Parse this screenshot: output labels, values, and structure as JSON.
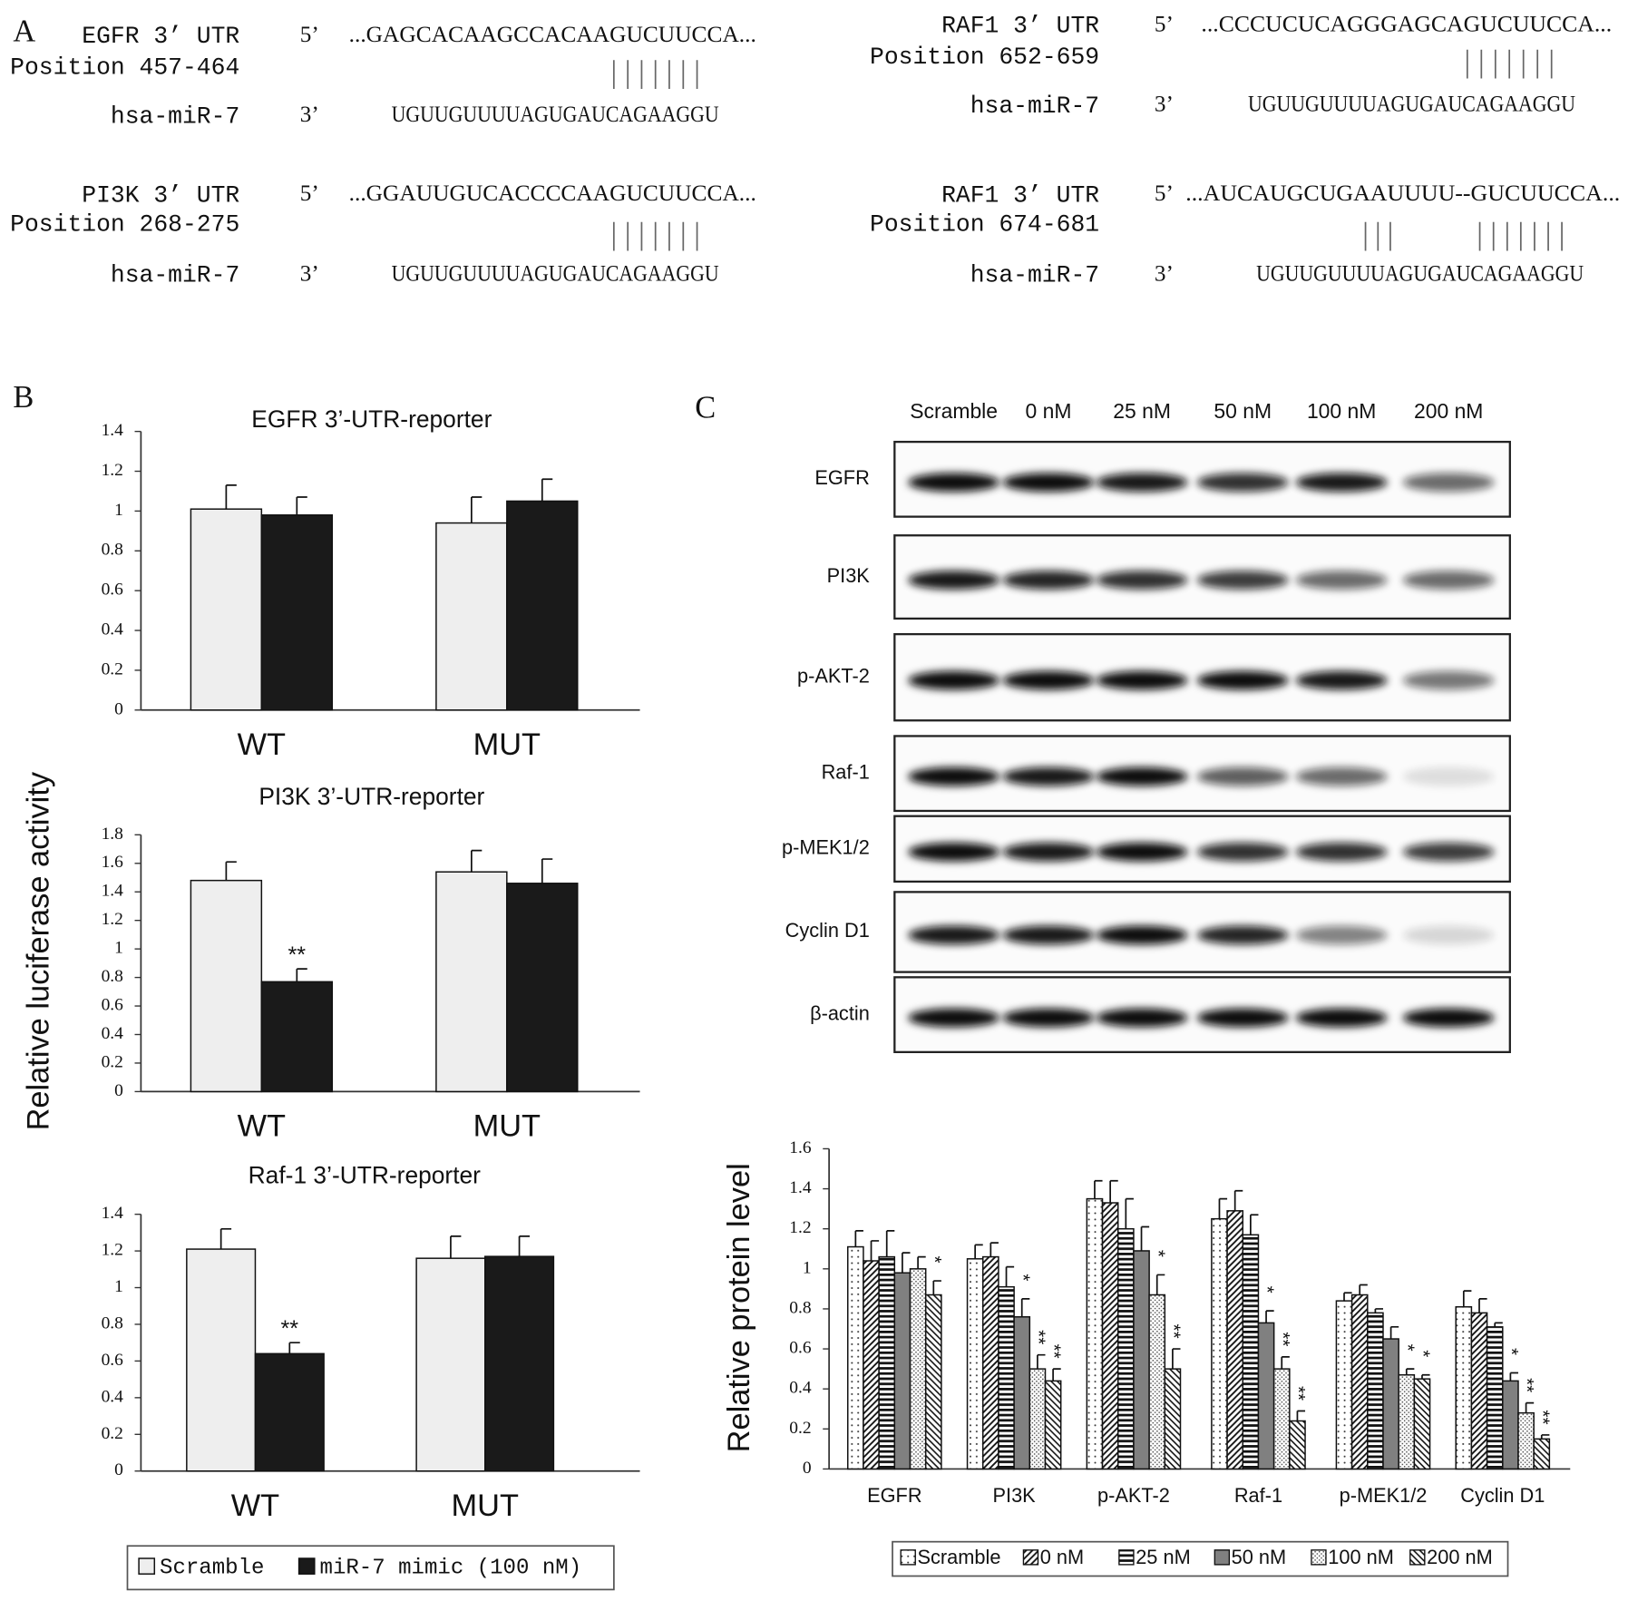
{
  "panel_labels": [
    "A",
    "B",
    "C"
  ],
  "panel_a": {
    "alignments": [
      {
        "gene": "EGFR 3’ UTR",
        "position": "Position 457-464",
        "five": "5’",
        "utr_seq": "...GAGCACAAGCCACAAGUCUUCCA...",
        "pairing": [
          "|||||||"
        ],
        "mirna_label": "hsa-miR-7",
        "three": "3’",
        "mirna_seq": "UGUUGUUUUAGUGAUCAGAAGGU"
      },
      {
        "gene": "PI3K 3’ UTR",
        "position": "Position 268-275",
        "five": "5’",
        "utr_seq": "...GGAUUGUCACCCCAAGUCUUCCA...",
        "pairing": [
          "|||||||"
        ],
        "mirna_label": "hsa-miR-7",
        "three": "3’",
        "mirna_seq": "UGUUGUUUUAGUGAUCAGAAGGU"
      },
      {
        "gene": "RAF1 3’ UTR",
        "position": "Position 652-659",
        "five": "5’",
        "utr_seq": "...CCCUCUCAGGGAGCAGUCUUCCA...",
        "pairing": [
          "|||||||"
        ],
        "mirna_label": "hsa-miR-7",
        "three": "3’",
        "mirna_seq": "UGUUGUUUUAGUGAUCAGAAGGU"
      },
      {
        "gene": "RAF1 3’ UTR",
        "position": "Position 674-681",
        "five": "5’",
        "utr_seq": "...AUCAUGCUGAAUUUU--GUCUUCCA...",
        "pairing": [
          "|||",
          "|||||||"
        ],
        "mirna_label": "hsa-miR-7",
        "three": "3’",
        "mirna_seq": "UGUUGUUUUAGUGAUCAGAAGGU"
      }
    ]
  },
  "panel_c_blot": {
    "columns": [
      "Scramble",
      "0 nM",
      "25 nM",
      "50 nM",
      "100 nM",
      "200 nM"
    ],
    "rows": [
      "EGFR",
      "PI3K",
      "p-AKT-2",
      "Raf-1",
      "p-MEK1/2",
      "Cyclin D1",
      "β-actin"
    ]
  },
  "chart_data": [
    {
      "type": "bar",
      "title": "EGFR 3’-UTR-reporter",
      "categories": [
        "WT",
        "MUT"
      ],
      "ylim": [
        0,
        1.4
      ],
      "yticks": [
        0,
        0.2,
        0.4,
        0.6,
        0.8,
        1,
        1.2,
        1.4
      ],
      "series": [
        {
          "name": "Scramble",
          "color": "#eeeeee",
          "values": [
            1.01,
            0.94
          ],
          "errors": [
            0.12,
            0.13
          ]
        },
        {
          "name": "miR-7 mimic (100 nM)",
          "color": "#1a1a1a",
          "values": [
            0.98,
            1.05
          ],
          "errors": [
            0.09,
            0.11
          ]
        }
      ]
    },
    {
      "type": "bar",
      "title": "PI3K 3’-UTR-reporter",
      "y_label": "Relative luciferase activity",
      "categories": [
        "WT",
        "MUT"
      ],
      "ylim": [
        0,
        1.8
      ],
      "yticks": [
        0,
        0.2,
        0.4,
        0.6,
        0.8,
        1,
        1.2,
        1.4,
        1.6,
        1.8
      ],
      "series": [
        {
          "color": "#eeeeee",
          "values": [
            1.48,
            1.54
          ],
          "errors": [
            0.13,
            0.15
          ]
        },
        {
          "color": "#1a1a1a",
          "values": [
            0.77,
            1.46
          ],
          "errors": [
            0.09,
            0.17
          ],
          "significance": [
            "**",
            null
          ]
        }
      ]
    },
    {
      "type": "bar",
      "title": "Raf-1 3’-UTR-reporter",
      "categories": [
        "WT",
        "MUT"
      ],
      "ylim": [
        0,
        1.4
      ],
      "yticks": [
        0,
        0.2,
        0.4,
        0.6,
        0.8,
        1,
        1.2,
        1.4
      ],
      "series": [
        {
          "color": "#eeeeee",
          "values": [
            1.21,
            1.16
          ],
          "errors": [
            0.11,
            0.12
          ]
        },
        {
          "color": "#1a1a1a",
          "values": [
            0.64,
            1.17
          ],
          "errors": [
            0.06,
            0.11
          ],
          "significance": [
            "**",
            null
          ]
        }
      ]
    },
    {
      "type": "bar",
      "y_label": "Relative protein level",
      "categories": [
        "EGFR",
        "PI3K",
        "p-AKT-2",
        "Raf-1",
        "p-MEK1/2",
        "Cyclin D1"
      ],
      "ylim": [
        0,
        1.6
      ],
      "yticks": [
        0,
        0.2,
        0.4,
        0.6,
        0.8,
        1,
        1.2,
        1.4,
        1.6
      ],
      "series": [
        {
          "name": "Scramble",
          "color": "#ffffff",
          "pattern": "dots",
          "values": [
            1.11,
            1.05,
            1.35,
            1.25,
            0.84,
            0.81
          ],
          "errors": [
            0.08,
            0.07,
            0.09,
            0.1,
            0.04,
            0.08
          ]
        },
        {
          "name": "0 nM",
          "color": "#ffffff",
          "pattern": "diagonal",
          "values": [
            1.04,
            1.06,
            1.33,
            1.29,
            0.87,
            0.78
          ],
          "errors": [
            0.1,
            0.07,
            0.11,
            0.1,
            0.05,
            0.07
          ]
        },
        {
          "name": "25 nM",
          "color": "#ffffff",
          "pattern": "horizontal",
          "values": [
            1.06,
            0.91,
            1.2,
            1.17,
            0.78,
            0.71
          ],
          "errors": [
            0.13,
            0.1,
            0.15,
            0.1,
            0.02,
            0.02
          ]
        },
        {
          "name": "50 nM",
          "color": "#808080",
          "values": [
            0.98,
            0.76,
            1.09,
            0.73,
            0.65,
            0.44
          ],
          "errors": [
            0.1,
            0.09,
            0.12,
            0.06,
            0.06,
            0.04
          ],
          "significance": [
            null,
            "*",
            null,
            "*",
            null,
            "*"
          ]
        },
        {
          "name": "100 nM",
          "color": "#ffffff",
          "pattern": "fine",
          "values": [
            1.0,
            0.5,
            0.87,
            0.5,
            0.47,
            0.28
          ],
          "errors": [
            0.06,
            0.07,
            0.1,
            0.06,
            0.03,
            0.05
          ],
          "significance": [
            null,
            "**",
            "*",
            "**",
            "*",
            "**"
          ]
        },
        {
          "name": "200 nM",
          "color": "#ffffff",
          "pattern": "backslash",
          "values": [
            0.87,
            0.44,
            0.5,
            0.24,
            0.45,
            0.15
          ],
          "errors": [
            0.07,
            0.06,
            0.1,
            0.05,
            0.02,
            0.02
          ],
          "significance": [
            "*",
            "**",
            "**",
            "**",
            "*",
            "**"
          ]
        }
      ]
    }
  ]
}
